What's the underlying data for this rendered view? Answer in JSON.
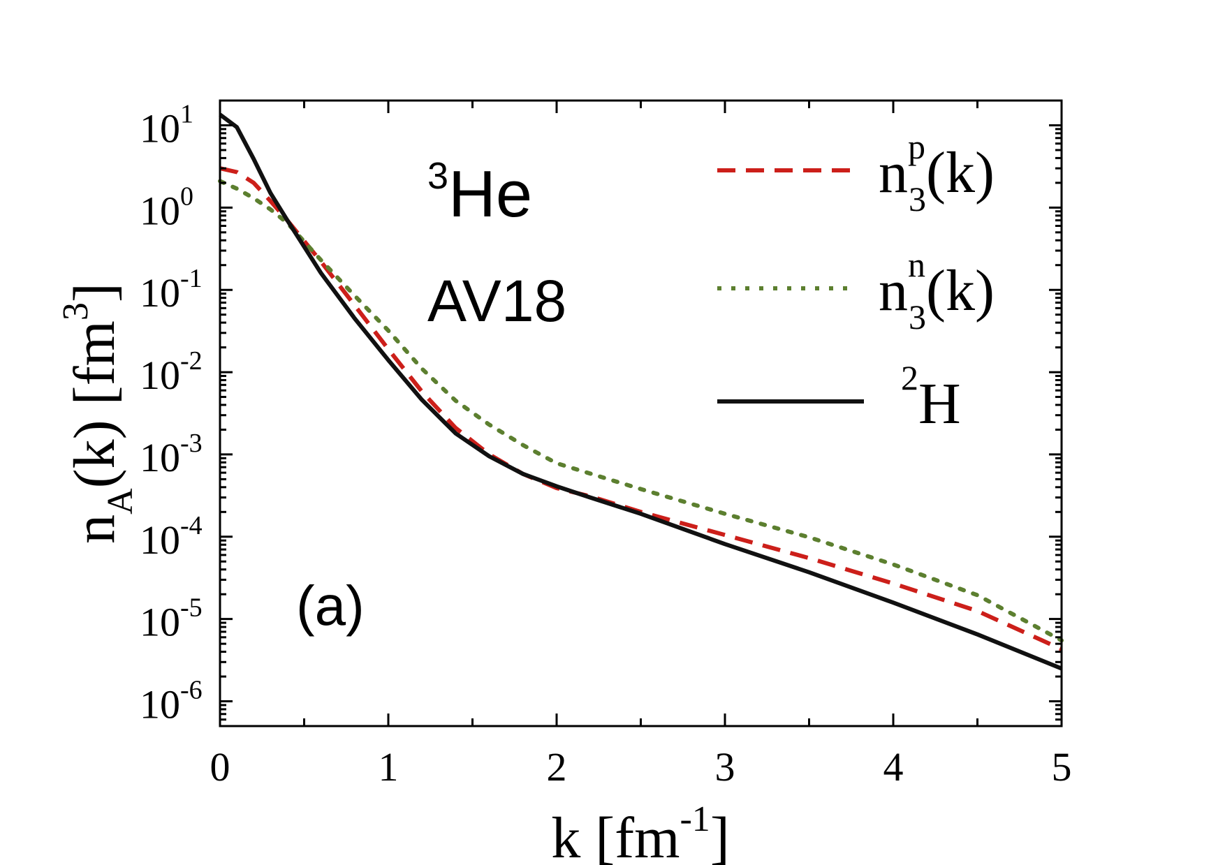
{
  "chart_data": {
    "type": "line",
    "title": "",
    "xlabel": {
      "main": "k [fm",
      "sup": "-1",
      "tail": "]"
    },
    "ylabel": {
      "n": "n",
      "sub": "A",
      "mid": "(k) [fm",
      "sup": "3",
      "tail": "]"
    },
    "xlim": [
      0,
      5
    ],
    "ylim": [
      5e-07,
      20
    ],
    "yscale": "log",
    "x_ticks": [
      {
        "value": 0,
        "label": "0"
      },
      {
        "value": 1,
        "label": "1"
      },
      {
        "value": 2,
        "label": "2"
      },
      {
        "value": 3,
        "label": "3"
      },
      {
        "value": 4,
        "label": "4"
      },
      {
        "value": 5,
        "label": "5"
      }
    ],
    "y_ticks": [
      {
        "exp": 1,
        "base": "10",
        "sup": "1"
      },
      {
        "exp": 0,
        "base": "10",
        "sup": "0"
      },
      {
        "exp": -1,
        "base": "10",
        "sup": "-1"
      },
      {
        "exp": -2,
        "base": "10",
        "sup": "-2"
      },
      {
        "exp": -3,
        "base": "10",
        "sup": "-3"
      },
      {
        "exp": -4,
        "base": "10",
        "sup": "-4"
      },
      {
        "exp": -5,
        "base": "10",
        "sup": "-5"
      },
      {
        "exp": -6,
        "base": "10",
        "sup": "-6"
      }
    ],
    "annotations": {
      "nucleus_sup": "3",
      "nucleus": "He",
      "potential": "AV18",
      "panel": "(a)"
    },
    "legend_position": "top-right",
    "series": [
      {
        "key": "p",
        "legend": {
          "n": "n",
          "sup": "p",
          "sub": "3",
          "tail": "(k)"
        },
        "color": "#cc1f1a",
        "style": "dashed",
        "x": [
          0,
          0.1,
          0.2,
          0.3,
          0.4,
          0.6,
          0.8,
          1.0,
          1.2,
          1.4,
          1.6,
          1.8,
          2.0,
          2.2,
          2.5,
          3.0,
          3.5,
          4.0,
          4.5,
          5.0
        ],
        "y": [
          3.0,
          2.7,
          2.0,
          1.2,
          0.7,
          0.22,
          0.065,
          0.019,
          0.0058,
          0.0021,
          0.001,
          0.00058,
          0.00039,
          0.00031,
          0.0002,
          0.000105,
          5.5e-05,
          2.7e-05,
          1.25e-05,
          4.3e-06
        ]
      },
      {
        "key": "n",
        "legend": {
          "n": "n",
          "sup": "n",
          "sub": "3",
          "tail": "(k)"
        },
        "color": "#5c7f2f",
        "style": "dotted",
        "x": [
          0,
          0.1,
          0.2,
          0.3,
          0.4,
          0.6,
          0.8,
          1.0,
          1.2,
          1.4,
          1.6,
          1.8,
          2.0,
          2.5,
          3.0,
          3.5,
          4.0,
          4.5,
          5.0
        ],
        "y": [
          2.1,
          1.7,
          1.3,
          0.95,
          0.65,
          0.23,
          0.085,
          0.032,
          0.011,
          0.0045,
          0.0023,
          0.0013,
          0.00078,
          0.00038,
          0.00019,
          9.85e-05,
          4.6e-05,
          1.95e-05,
          5.5e-06
        ]
      },
      {
        "key": "2H",
        "legend": {
          "sup": "2",
          "main": "H"
        },
        "color": "#111111",
        "style": "solid",
        "x": [
          0,
          0.1,
          0.2,
          0.3,
          0.4,
          0.6,
          0.8,
          1.0,
          1.2,
          1.4,
          1.6,
          1.8,
          2.0,
          2.2,
          2.5,
          3.0,
          3.5,
          4.0,
          4.5,
          5.0
        ],
        "y": [
          13.5,
          9.5,
          3.9,
          1.5,
          0.7,
          0.16,
          0.045,
          0.014,
          0.0046,
          0.0018,
          0.00095,
          0.00058,
          0.00041,
          0.0003,
          0.00019,
          8.15e-05,
          3.7e-05,
          1.58e-05,
          6.5e-06,
          2.5e-06
        ]
      }
    ]
  }
}
